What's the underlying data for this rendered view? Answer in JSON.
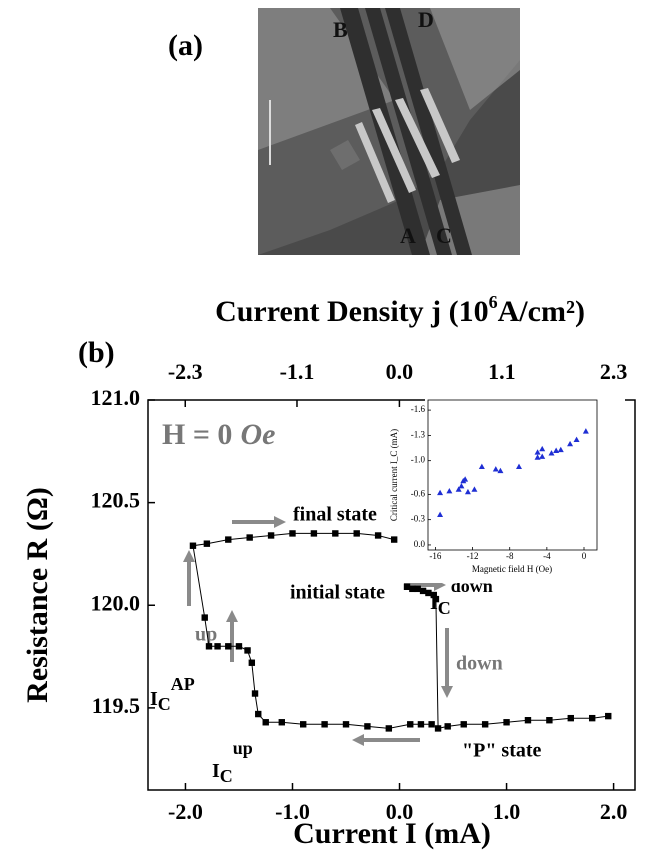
{
  "panel_labels": {
    "a": "(a)",
    "b": "(b)"
  },
  "panel_a": {
    "labels": [
      "B",
      "D",
      "A",
      "C"
    ]
  },
  "chart_data": [
    {
      "type": "scatter",
      "top_axis_label": [
        "Current Density j (10",
        "6",
        "A/cm²)"
      ],
      "xlabel": "Current I (mA)",
      "ylabel": "Resistance R (Ω)",
      "field_label": [
        "H = 0",
        "Oe"
      ],
      "annotations": {
        "final": "final state",
        "initial": "initial state",
        "down": "down",
        "up": "up",
        "p_state": "\"P\" state"
      },
      "critical_labels": [
        {
          "main": "I",
          "sub": "C",
          "sup": "AP"
        },
        {
          "main": "I",
          "sub": "C",
          "sup": "up"
        },
        {
          "main": "I",
          "sub": "C",
          "sup": "down"
        }
      ],
      "color": "#000000",
      "x": [
        0.07,
        0.12,
        0.17,
        0.22,
        0.27,
        0.32,
        0.34,
        0.36,
        0.45,
        0.6,
        0.8,
        1.0,
        1.2,
        1.4,
        1.6,
        1.8,
        1.95,
        null,
        0.3,
        0.2,
        0.1,
        -0.1,
        -0.3,
        -0.5,
        -0.7,
        -0.9,
        -1.1,
        -1.25,
        -1.32,
        -1.35,
        -1.38,
        -1.42,
        -1.5,
        -1.6,
        -1.7,
        -1.78,
        -1.82,
        -1.93,
        -1.8,
        -1.6,
        -1.4,
        -1.2,
        -1.0,
        -0.8,
        -0.6,
        -0.4,
        -0.2,
        -0.05
      ],
      "y": [
        120.09,
        120.08,
        120.08,
        120.07,
        120.06,
        120.05,
        120.03,
        119.4,
        119.41,
        119.42,
        119.42,
        119.43,
        119.44,
        119.44,
        119.45,
        119.45,
        119.46,
        null,
        119.42,
        119.42,
        119.42,
        119.4,
        119.41,
        119.42,
        119.42,
        119.42,
        119.43,
        119.43,
        119.47,
        119.57,
        119.72,
        119.78,
        119.8,
        119.8,
        119.8,
        119.8,
        119.94,
        120.29,
        120.3,
        120.32,
        120.33,
        120.34,
        120.35,
        120.35,
        120.35,
        120.35,
        120.34,
        120.32
      ],
      "xlim": [
        -2.35,
        2.2
      ],
      "ylim": [
        119.1,
        121.0
      ],
      "x2lim": [
        -2.7,
        2.53
      ],
      "xticks": [
        {
          "value": -2,
          "label": "-2.0"
        },
        {
          "value": -1,
          "label": "-1.0"
        },
        {
          "value": 0,
          "label": "0.0"
        },
        {
          "value": 1,
          "label": "1.0"
        },
        {
          "value": 2,
          "label": "2.0"
        }
      ],
      "x2ticks": [
        -2.3,
        -1.1,
        {
          "value": 0,
          "label": "0.0"
        },
        1.1,
        2.3
      ],
      "yticks": [
        {
          "value": 121,
          "label": "121.0"
        },
        120.5,
        {
          "value": 120,
          "label": "120.0"
        },
        119.5
      ]
    },
    {
      "type": "scatter",
      "xlabel": "Magnetic field H (Oe)",
      "ylabel": "Critical current I_C (mA)",
      "color": "#1f2fd4",
      "x": [
        -15.5,
        -15.5,
        -14.5,
        -13.5,
        -13.2,
        -13,
        -12.8,
        -12.5,
        -11.8,
        -11,
        -9.5,
        -9,
        -7,
        -5,
        -5,
        -4.5,
        -4.5,
        -3.5,
        -3,
        -2.5,
        -1.5,
        -0.8,
        0.2
      ],
      "y": [
        -0.36,
        -0.62,
        -0.64,
        -0.66,
        -0.7,
        -0.76,
        -0.78,
        -0.63,
        -0.66,
        -0.93,
        -0.9,
        -0.88,
        -0.93,
        -1.1,
        -1.04,
        -1.05,
        -1.14,
        -1.09,
        -1.12,
        -1.13,
        -1.2,
        -1.25,
        -1.35
      ],
      "xlim": [
        -16.8,
        1.4
      ],
      "ylim": [
        0.06,
        -1.72
      ],
      "xticks": [
        -16,
        -12,
        -8,
        -4,
        0
      ],
      "yticks": [
        -1.6,
        -1.3,
        {
          "value": -1,
          "label": "-1.0"
        },
        -0.6,
        -0.3,
        {
          "value": 0,
          "label": "0.0"
        }
      ]
    }
  ]
}
